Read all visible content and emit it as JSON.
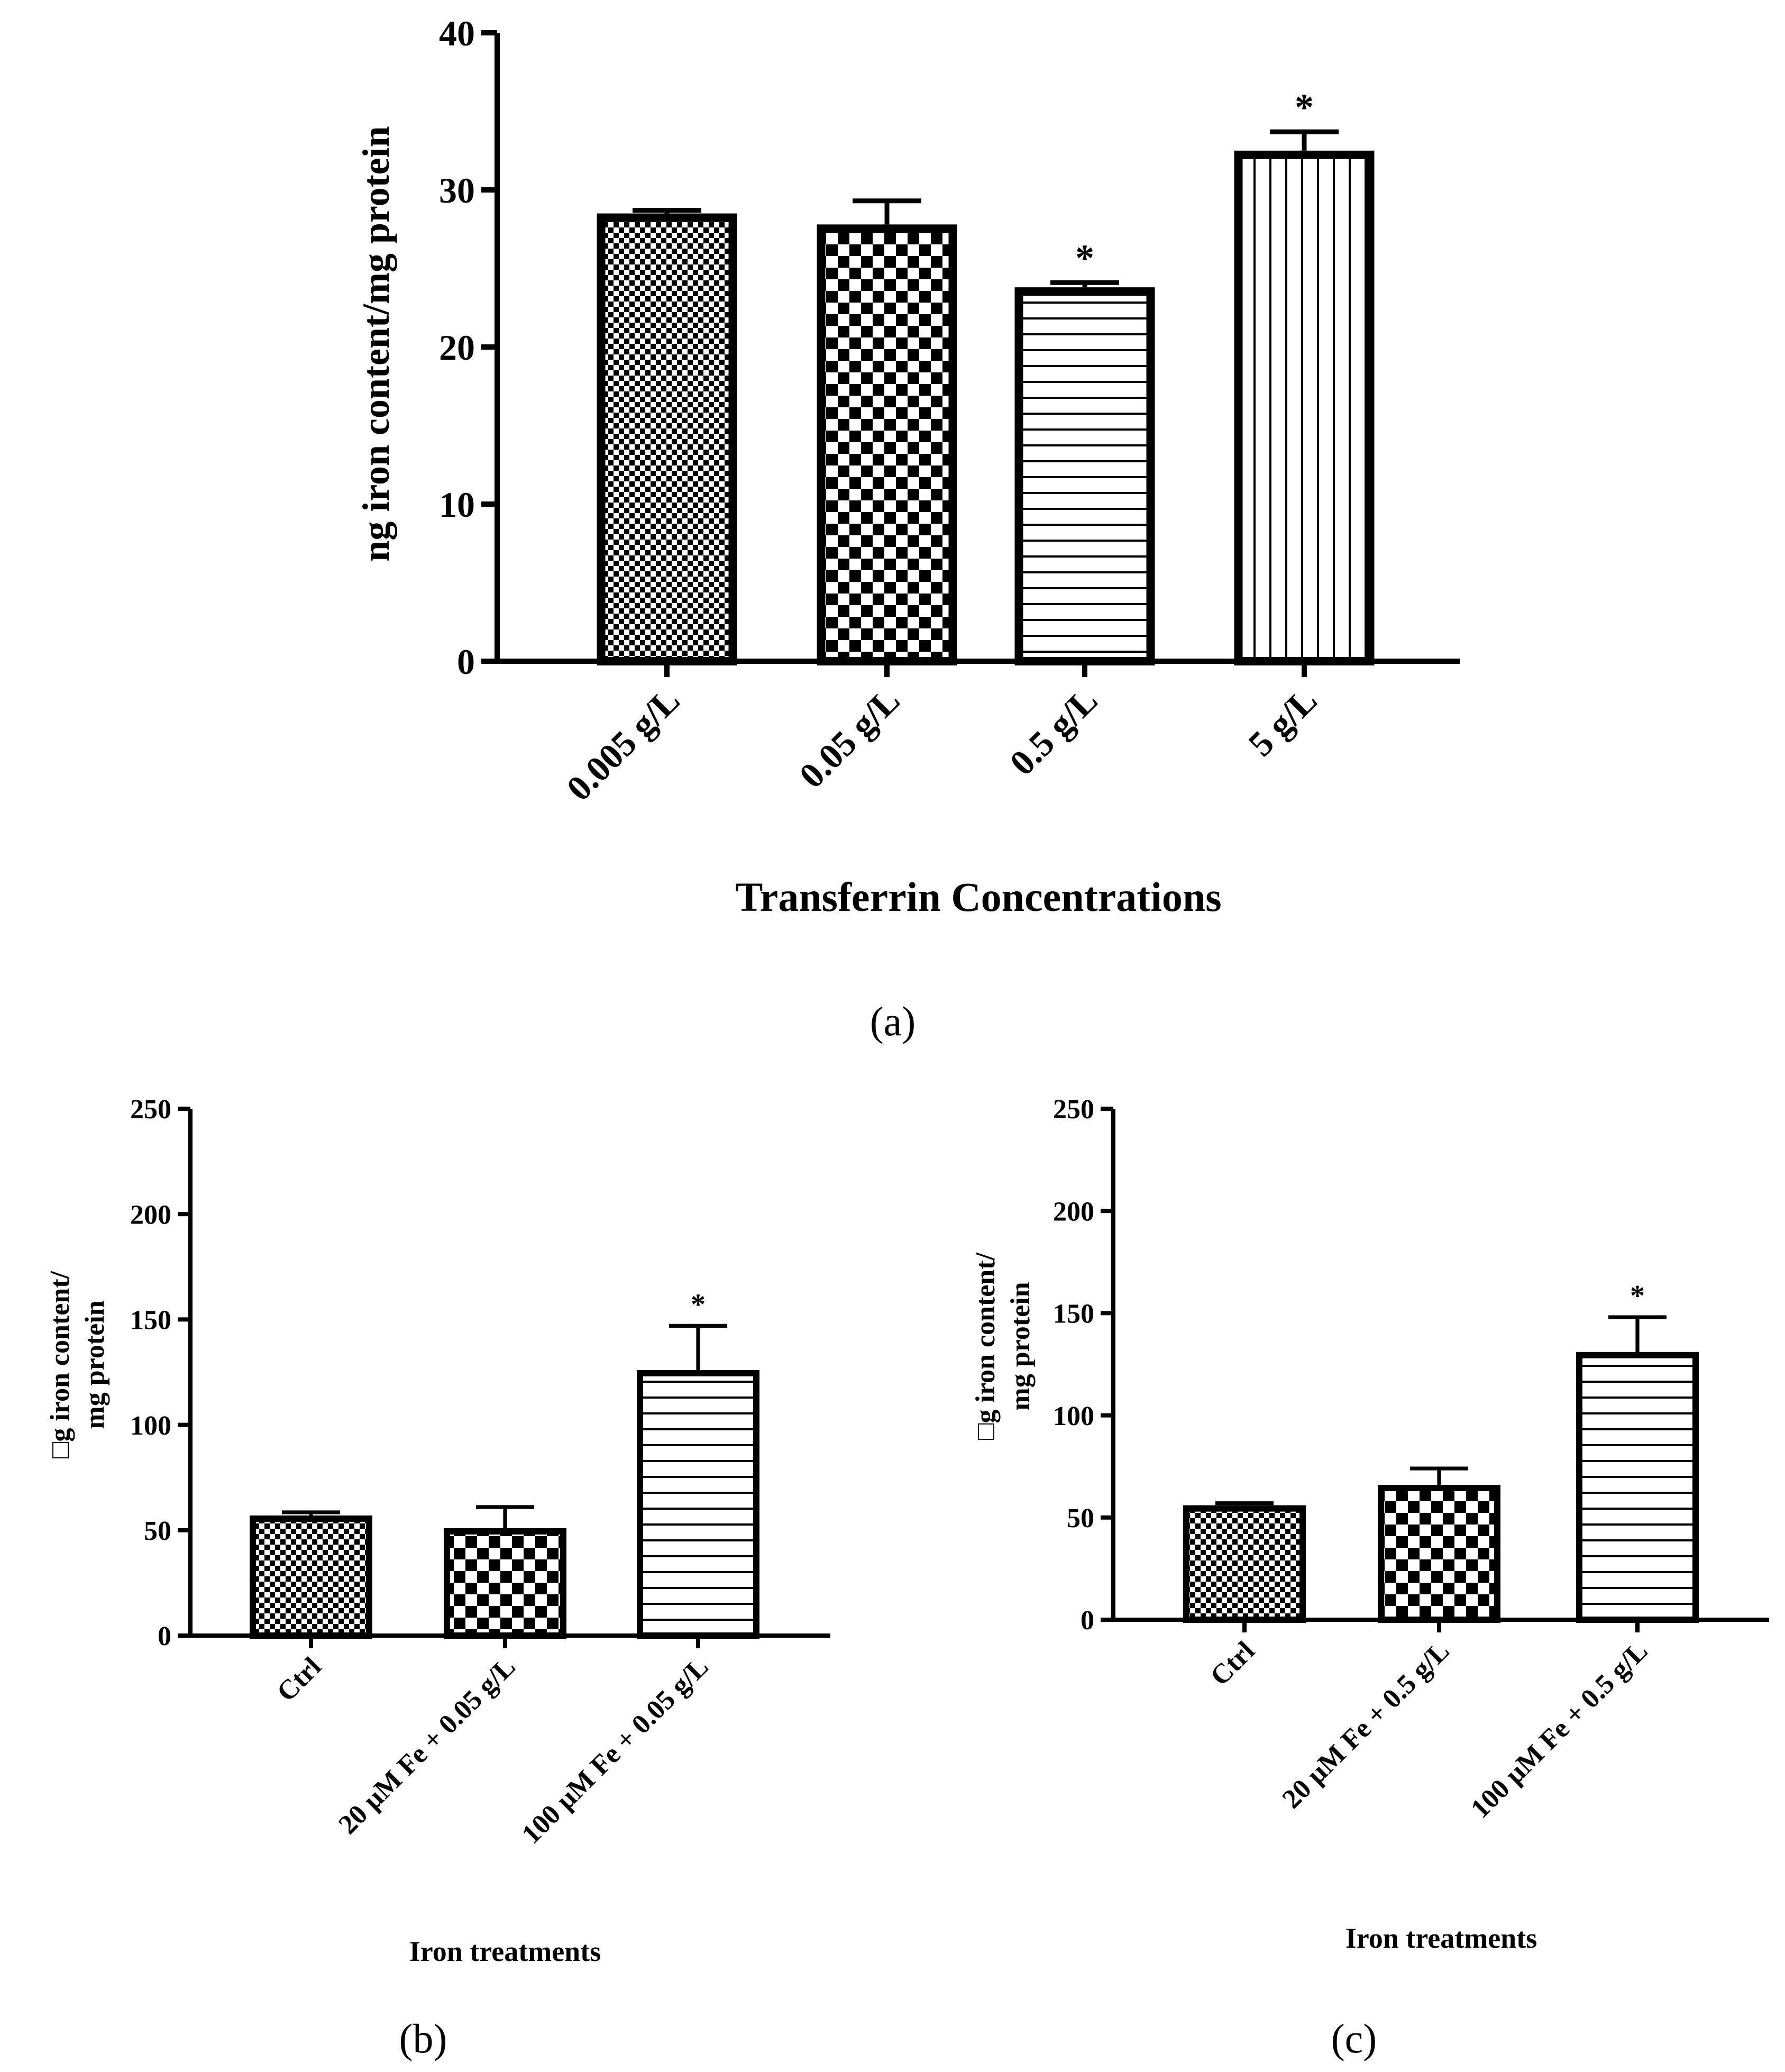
{
  "figure": {
    "captions": [
      {
        "label": "a",
        "text": "(a)"
      },
      {
        "label": "b",
        "text": "(b)"
      },
      {
        "label": "c",
        "text": "(c)"
      }
    ]
  },
  "chart_data": [
    {
      "panel": "a",
      "type": "bar",
      "title": "",
      "xlabel": "Transferrin Concentrations",
      "ylabel": "ng iron content/mg  protein",
      "ylim": [
        0,
        40
      ],
      "yticks": [
        0,
        10,
        20,
        30,
        40
      ],
      "categories": [
        "0.005 g/L",
        "0.05 g/L",
        "0.5 g/L",
        "5 g/L"
      ],
      "values": [
        28.5,
        27.8,
        23.8,
        32.5
      ],
      "errors": [
        0.2,
        1.5,
        0.3,
        1.2
      ],
      "significance": [
        "",
        "",
        "*",
        "*"
      ],
      "patterns": [
        "fine-check",
        "check",
        "hlines",
        "vlines"
      ]
    },
    {
      "panel": "b",
      "type": "bar",
      "title": "",
      "xlabel": "Iron treatments",
      "ylabel": [
        "□g iron content/",
        "mg protein"
      ],
      "ylim": [
        0,
        250
      ],
      "yticks": [
        0,
        50,
        100,
        150,
        200,
        250
      ],
      "categories": [
        "Ctrl",
        "20 µM Fe + 0.05 g/L",
        "100 µM Fe + 0.05 g/L"
      ],
      "values": [
        57,
        51,
        126
      ],
      "errors": [
        1.5,
        10,
        21
      ],
      "significance": [
        "",
        "",
        "*"
      ],
      "patterns": [
        "fine-check",
        "check",
        "hlines"
      ]
    },
    {
      "panel": "c",
      "type": "bar",
      "title": "",
      "xlabel": "Iron treatments",
      "ylabel": [
        "□g iron content/",
        "mg protein"
      ],
      "ylim": [
        0,
        250
      ],
      "yticks": [
        0,
        50,
        100,
        150,
        200,
        250
      ],
      "categories": [
        "Ctrl",
        "20 µM Fe + 0.5 g/L",
        "100 µM Fe + 0.5 g/L"
      ],
      "values": [
        56,
        66,
        131
      ],
      "errors": [
        1,
        8,
        17
      ],
      "significance": [
        "",
        "",
        "*"
      ],
      "patterns": [
        "fine-check",
        "check",
        "hlines"
      ]
    }
  ]
}
